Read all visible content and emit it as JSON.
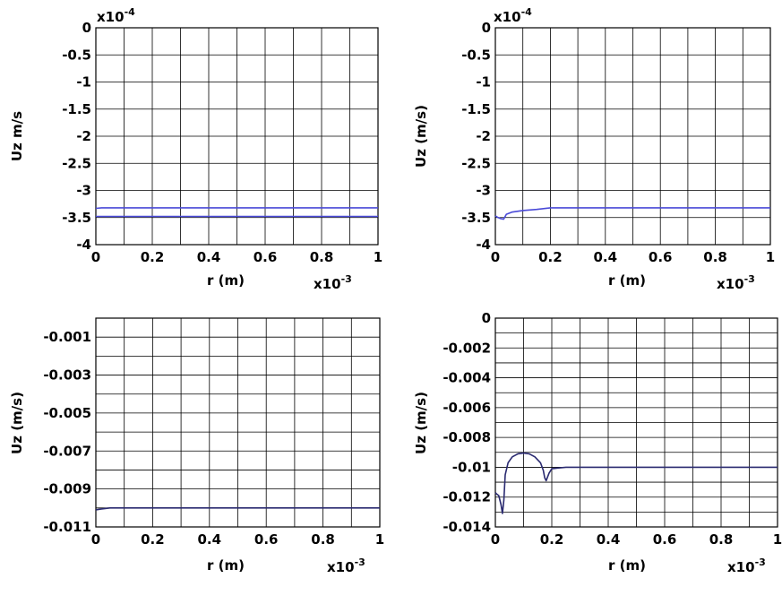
{
  "chart_data": [
    {
      "type": "line",
      "xlabel": "r (m)",
      "ylabel": "Uz m/s",
      "x_multiplier": "x10",
      "x_multiplier_exp": "-3",
      "y_multiplier": "x10",
      "y_multiplier_exp": "-4",
      "xlim": [
        0,
        1
      ],
      "ylim": [
        -4,
        0
      ],
      "xticks": [
        0,
        0.2,
        0.4,
        0.6,
        0.8,
        1
      ],
      "xtick_labels": [
        "0",
        "0.2",
        "0.4",
        "0.6",
        "0.8",
        "1"
      ],
      "yticks": [
        0,
        -0.5,
        -1,
        -1.5,
        -2,
        -2.5,
        -3,
        -3.5,
        -4
      ],
      "ytick_labels": [
        "0",
        "-0.5",
        "-1",
        "-1.5",
        "-2",
        "-2.5",
        "-3",
        "-3.5",
        "-4"
      ],
      "grid": true,
      "color": "#4a4ad8",
      "series": [
        {
          "x": [
            0,
            0.02,
            0.05,
            0.1,
            0.2,
            0.3,
            0.5,
            0.7,
            1
          ],
          "y": [
            -3.33,
            -3.32,
            -3.32,
            -3.32,
            -3.32,
            -3.32,
            -3.32,
            -3.32,
            -3.32
          ]
        },
        {
          "x": [
            0,
            0.1,
            0.3,
            0.5,
            0.7,
            1
          ],
          "y": [
            -3.48,
            -3.48,
            -3.48,
            -3.48,
            -3.48,
            -3.48
          ]
        }
      ]
    },
    {
      "type": "line",
      "xlabel": "r (m)",
      "ylabel": "Uz (m/s)",
      "x_multiplier": "x10",
      "x_multiplier_exp": "-3",
      "y_multiplier": "x10",
      "y_multiplier_exp": "-4",
      "xlim": [
        0,
        1
      ],
      "ylim": [
        -4,
        0
      ],
      "xticks": [
        0,
        0.2,
        0.4,
        0.6,
        0.8,
        1
      ],
      "xtick_labels": [
        "0",
        "0.2",
        "0.4",
        "0.6",
        "0.8",
        "1"
      ],
      "yticks": [
        0,
        -0.5,
        -1,
        -1.5,
        -2,
        -2.5,
        -3,
        -3.5,
        -4
      ],
      "ytick_labels": [
        "0",
        "-0.5",
        "-1",
        "-1.5",
        "-2",
        "-2.5",
        "-3",
        "-3.5",
        "-4"
      ],
      "grid": true,
      "color": "#4a4ad8",
      "series": [
        {
          "x": [
            0,
            0.01,
            0.02,
            0.03,
            0.04,
            0.06,
            0.1,
            0.15,
            0.2,
            0.3,
            0.5,
            0.7,
            1
          ],
          "y": [
            -3.47,
            -3.5,
            -3.52,
            -3.53,
            -3.44,
            -3.4,
            -3.37,
            -3.35,
            -3.32,
            -3.32,
            -3.32,
            -3.32,
            -3.32
          ]
        }
      ]
    },
    {
      "type": "line",
      "xlabel": "r (m)",
      "ylabel": "Uz (m/s)",
      "x_multiplier": "x10",
      "x_multiplier_exp": "-3",
      "xlim": [
        0,
        1
      ],
      "ylim": [
        -0.011,
        0
      ],
      "xticks": [
        0,
        0.2,
        0.4,
        0.6,
        0.8,
        1
      ],
      "xtick_labels": [
        "0",
        "0.2",
        "0.4",
        "0.6",
        "0.8",
        "1"
      ],
      "yticks": [
        -0.001,
        -0.003,
        -0.005,
        -0.007,
        -0.009,
        -0.011
      ],
      "ytick_labels": [
        "-0.001",
        "-0.003",
        "-0.005",
        "-0.007",
        "-0.009",
        "-0.011"
      ],
      "grid_y": [
        -0.001,
        -0.002,
        -0.003,
        -0.004,
        -0.005,
        -0.006,
        -0.007,
        -0.008,
        -0.009,
        -0.01
      ],
      "grid": true,
      "color": "#2a2a70",
      "series": [
        {
          "x": [
            0,
            0.02,
            0.05,
            0.1,
            0.2,
            0.3,
            0.5,
            0.7,
            1
          ],
          "y": [
            -0.0101,
            -0.01005,
            -0.01,
            -0.01,
            -0.01,
            -0.01,
            -0.01,
            -0.01,
            -0.01
          ]
        }
      ]
    },
    {
      "type": "line",
      "xlabel": "r (m)",
      "ylabel": "Uz (m/s)",
      "x_multiplier": "x10",
      "x_multiplier_exp": "-3",
      "xlim": [
        0,
        1
      ],
      "ylim": [
        -0.014,
        0
      ],
      "xticks": [
        0,
        0.2,
        0.4,
        0.6,
        0.8,
        1
      ],
      "xtick_labels": [
        "0",
        "0.2",
        "0.4",
        "0.6",
        "0.8",
        "1"
      ],
      "yticks": [
        0,
        -0.002,
        -0.004,
        -0.006,
        -0.008,
        -0.01,
        -0.012,
        -0.014
      ],
      "ytick_labels": [
        "0",
        "-0.002",
        "-0.004",
        "-0.006",
        "-0.008",
        "-0.01",
        "-0.012",
        "-0.014"
      ],
      "grid_y": [
        -0.001,
        -0.002,
        -0.003,
        -0.004,
        -0.005,
        -0.006,
        -0.007,
        -0.008,
        -0.009,
        -0.01,
        -0.011,
        -0.012,
        -0.013
      ],
      "grid": true,
      "color": "#2a2a70",
      "series": [
        {
          "x": [
            0,
            0.005,
            0.012,
            0.02,
            0.025,
            0.03,
            0.035,
            0.045,
            0.06,
            0.08,
            0.1,
            0.12,
            0.14,
            0.16,
            0.17,
            0.175,
            0.18,
            0.19,
            0.2,
            0.22,
            0.25,
            0.3,
            0.4,
            0.6,
            0.8,
            1
          ],
          "y": [
            -0.0117,
            -0.0118,
            -0.0119,
            -0.0125,
            -0.0131,
            -0.0122,
            -0.0105,
            -0.0097,
            -0.0093,
            -0.0091,
            -0.00905,
            -0.0091,
            -0.0093,
            -0.0097,
            -0.0102,
            -0.0107,
            -0.0109,
            -0.0104,
            -0.0101,
            -0.01005,
            -0.01,
            -0.01,
            -0.01,
            -0.01,
            -0.01,
            -0.01
          ]
        }
      ]
    }
  ]
}
